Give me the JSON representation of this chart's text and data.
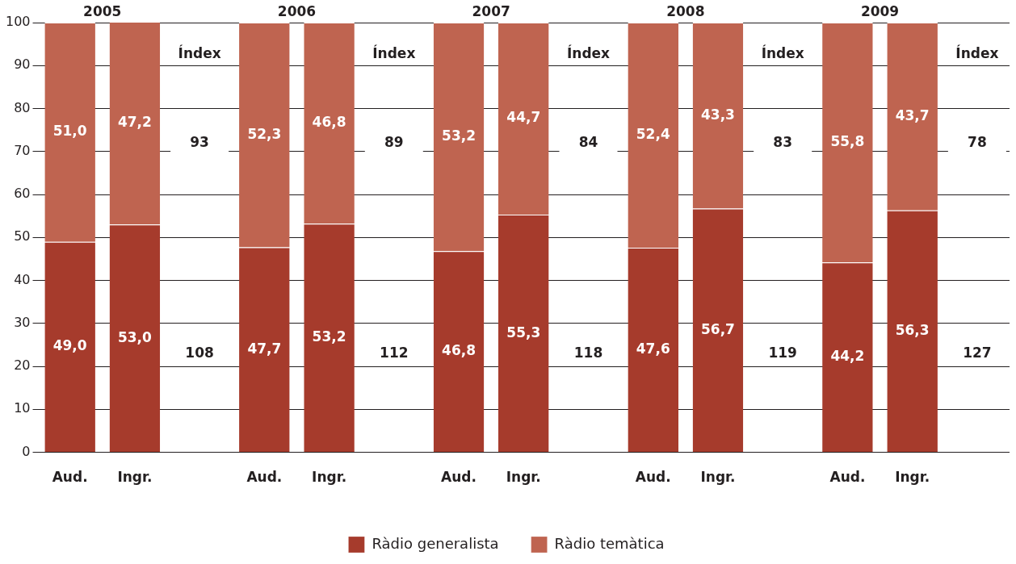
{
  "chart_data": {
    "type": "bar",
    "stacked": true,
    "categories": [
      "Aud.",
      "Ingr.",
      null,
      "Aud.",
      "Ingr.",
      null,
      "Aud.",
      "Ingr.",
      null,
      "Aud.",
      "Ingr.",
      null,
      "Aud.",
      "Ingr.",
      null
    ],
    "series": [
      {
        "name": "Ràdio generalista",
        "color": "#a63b2c",
        "values": [
          49.0,
          53.0,
          null,
          47.7,
          53.2,
          null,
          46.8,
          55.3,
          null,
          47.6,
          56.7,
          null,
          44.2,
          56.3,
          null
        ],
        "value_labels": [
          "49,0",
          "53,0",
          null,
          "47,7",
          "53,2",
          null,
          "46,8",
          "55,3",
          null,
          "47,6",
          "56,7",
          null,
          "44,2",
          "56,3",
          null
        ]
      },
      {
        "name": "Ràdio temàtica",
        "color": "#bf6450",
        "values": [
          51.0,
          47.2,
          null,
          52.3,
          46.8,
          null,
          53.2,
          44.7,
          null,
          52.4,
          43.3,
          null,
          55.8,
          43.7,
          null
        ],
        "value_labels": [
          "51,0",
          "47,2",
          null,
          "52,3",
          "46,8",
          null,
          "53,2",
          "44,7",
          null,
          "52,4",
          "43,3",
          null,
          "55,8",
          "43,7",
          null
        ]
      }
    ],
    "ylim": [
      0,
      100
    ],
    "yticks": [
      0,
      10,
      20,
      30,
      40,
      50,
      60,
      70,
      80,
      90,
      100
    ],
    "grid": "y",
    "legend": "bottom",
    "annotations": [
      "2005",
      "Índex",
      "93",
      "108",
      "2006",
      "Índex",
      "89",
      "112",
      "2007",
      "Índex",
      "84",
      "118",
      "2008",
      "Índex",
      "83",
      "119",
      "2009",
      "Índex",
      "78",
      "127"
    ]
  }
}
